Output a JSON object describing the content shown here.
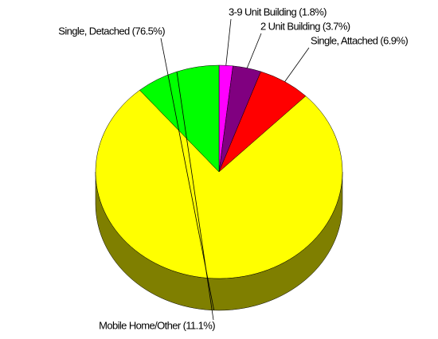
{
  "chart_data": {
    "type": "pie",
    "categories": [
      "3-9 Unit Building (1.8%)",
      "2 Unit Building (3.7%)",
      "Single, Attached (6.9%)",
      "Single, Detached (76.5%)",
      "Mobile Home/Other (11.1%)"
    ],
    "values": [
      1.8,
      3.7,
      6.9,
      76.5,
      11.1
    ],
    "colors": [
      "#ff00ff",
      "#800080",
      "#ff0000",
      "#ffff00",
      "#00ff00"
    ]
  }
}
